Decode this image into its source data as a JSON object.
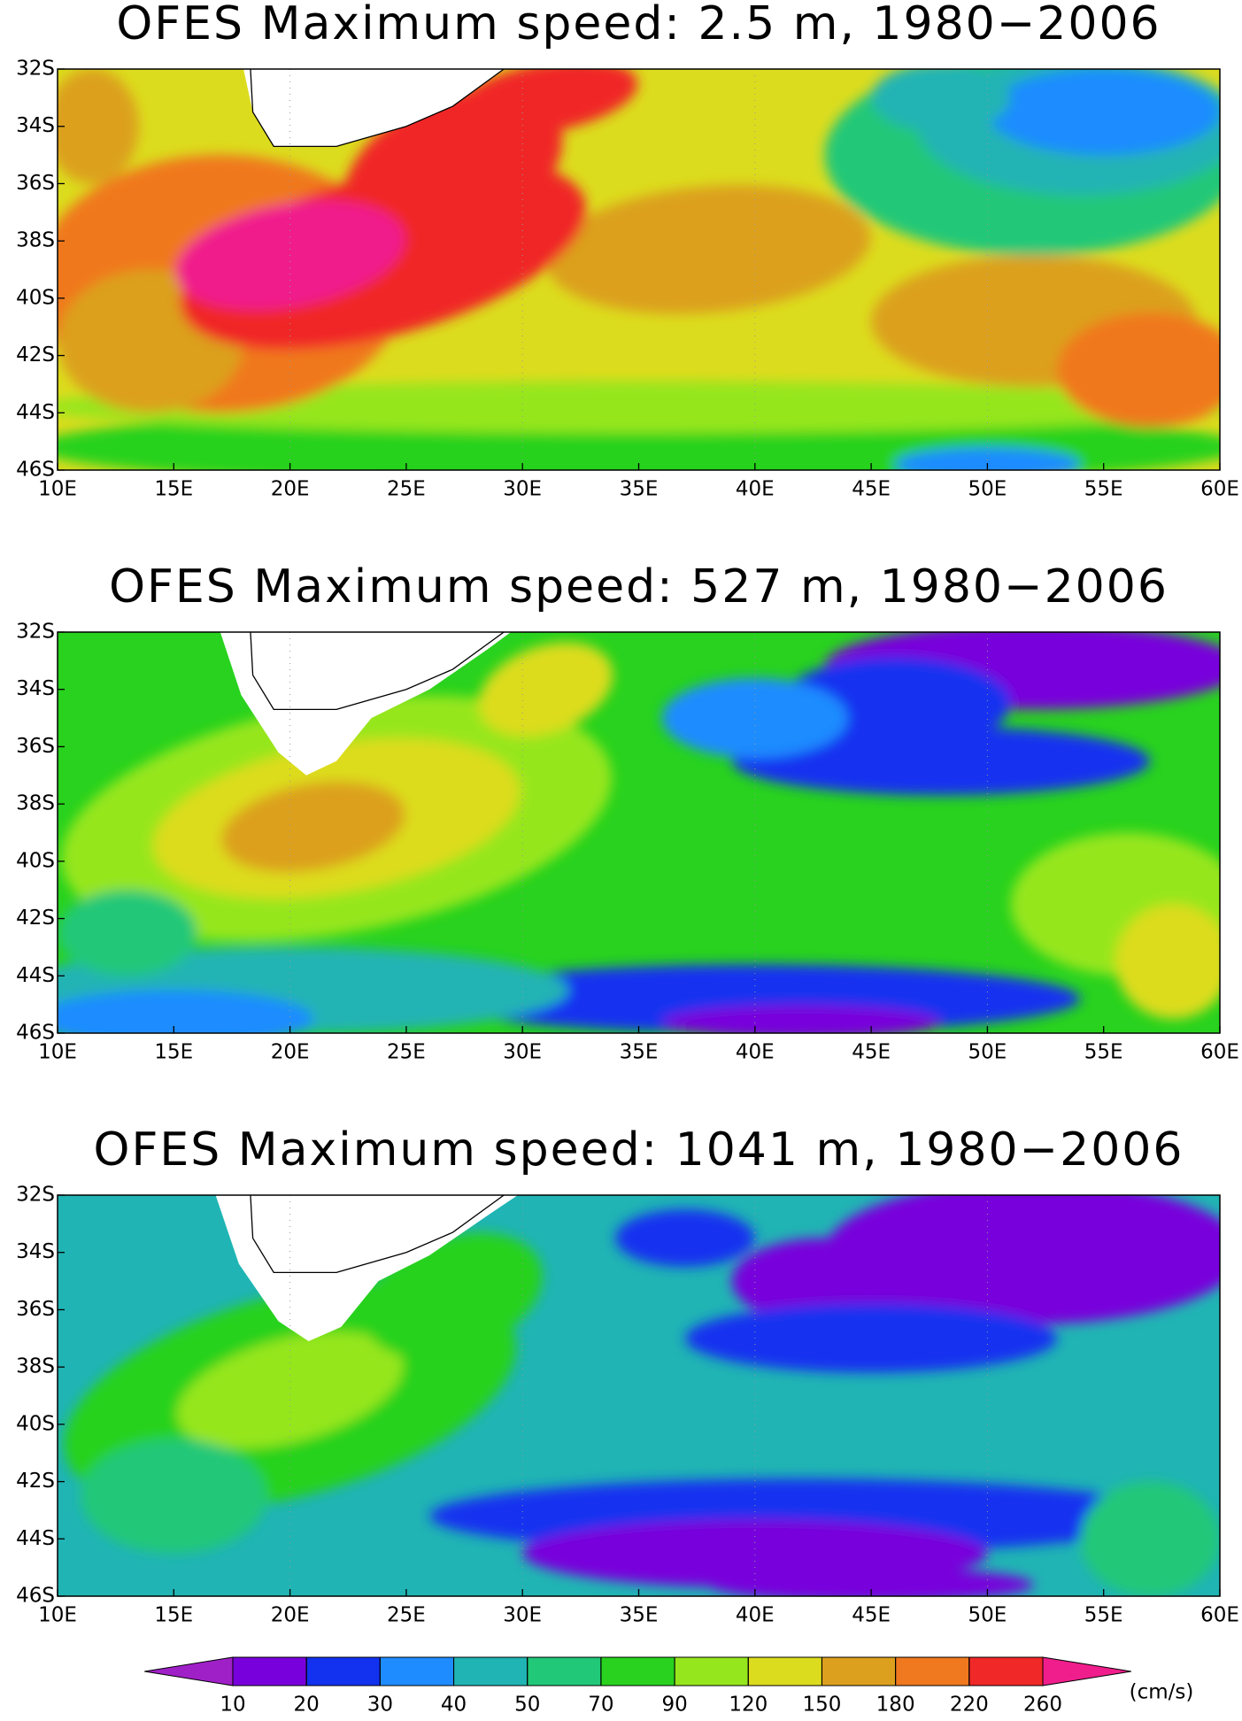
{
  "panels": [
    {
      "title": "OFES Maximum speed: 2.5 m, 1980−2006"
    },
    {
      "title": "OFES Maximum speed: 527 m, 1980−2006"
    },
    {
      "title": "OFES Maximum speed: 1041 m, 1980−2006"
    }
  ],
  "lon_ticks": [
    "10E",
    "15E",
    "20E",
    "25E",
    "30E",
    "35E",
    "40E",
    "45E",
    "50E",
    "55E",
    "60E"
  ],
  "lat_ticks": [
    "32S",
    "34S",
    "36S",
    "38S",
    "40S",
    "42S",
    "44S",
    "46S"
  ],
  "colorbar": {
    "levels": [
      10,
      20,
      30,
      40,
      50,
      70,
      90,
      120,
      150,
      180,
      220,
      260
    ],
    "colors": [
      "#a020c8",
      "#7800dc",
      "#1232f0",
      "#1e8cff",
      "#20b4b4",
      "#20c878",
      "#28d21e",
      "#96e61e",
      "#dcdc1e",
      "#dca01e",
      "#f0781e",
      "#f02828",
      "#f01e8c"
    ],
    "unit": "(cm/s)"
  }
}
